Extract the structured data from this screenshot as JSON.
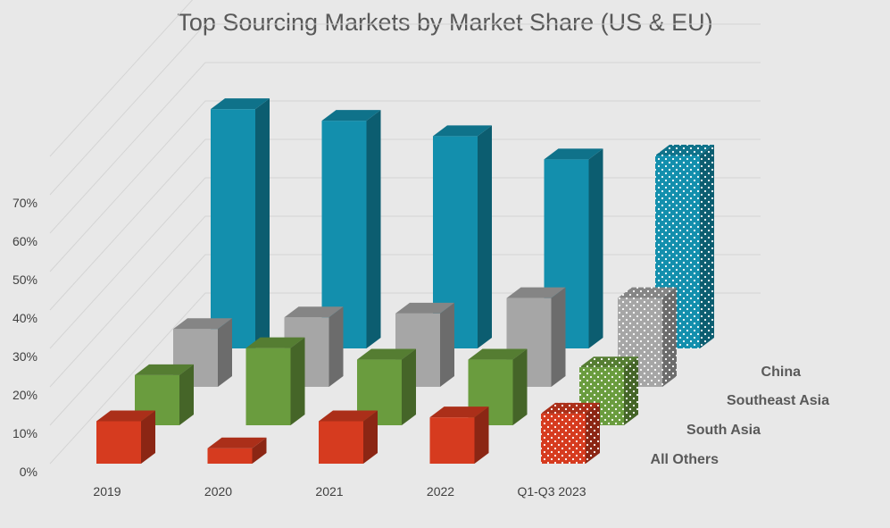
{
  "chart_data": {
    "type": "bar",
    "title": "Top Sourcing Markets by Market Share (US & EU)",
    "categories": [
      "2019",
      "2020",
      "2021",
      "2022",
      "Q1-Q3 2023"
    ],
    "y_ticks": [
      "0%",
      "10%",
      "20%",
      "30%",
      "40%",
      "50%",
      "60%",
      "70%"
    ],
    "ylim": [
      0,
      70
    ],
    "grid": true,
    "projection": "3d",
    "series": [
      {
        "name": "China",
        "color": "#138fad",
        "values": [
          62,
          59,
          55,
          49,
          50
        ]
      },
      {
        "name": "Southeast Asia",
        "color": "#a6a6a6",
        "values": [
          15,
          18,
          19,
          23,
          23
        ]
      },
      {
        "name": "South Asia",
        "color": "#6a9c3e",
        "values": [
          13,
          20,
          17,
          17,
          15
        ]
      },
      {
        "name": "All Others",
        "color": "#d63b1f",
        "values": [
          11,
          4,
          11,
          12,
          13
        ]
      }
    ],
    "highlighted_category": "Q1-Q3 2023",
    "highlight_pattern": "dotted"
  }
}
